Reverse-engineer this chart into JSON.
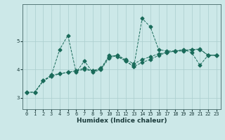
{
  "xlabel": "Humidex (Indice chaleur)",
  "ylabel": "",
  "background_color": "#cce8e8",
  "line_color": "#1a6b5a",
  "grid_color": "#aacece",
  "x_data": [
    0,
    1,
    2,
    3,
    4,
    5,
    6,
    7,
    8,
    9,
    10,
    11,
    12,
    13,
    14,
    15,
    16,
    17,
    18,
    19,
    20,
    21,
    22,
    23
  ],
  "series": [
    [
      3.2,
      3.2,
      3.6,
      3.8,
      4.7,
      5.2,
      3.9,
      4.3,
      3.9,
      4.0,
      4.5,
      4.45,
      4.3,
      4.1,
      5.8,
      5.5,
      4.7,
      4.65,
      4.65,
      4.7,
      4.6,
      4.15,
      4.5,
      4.5
    ],
    [
      3.2,
      3.2,
      3.6,
      3.8,
      3.85,
      3.9,
      3.95,
      4.0,
      3.95,
      4.05,
      4.45,
      4.5,
      4.35,
      4.2,
      4.35,
      4.45,
      4.55,
      4.6,
      4.65,
      4.68,
      4.7,
      4.72,
      4.5,
      4.5
    ],
    [
      3.2,
      3.2,
      3.6,
      3.75,
      3.85,
      3.9,
      3.95,
      4.05,
      3.95,
      4.0,
      4.4,
      4.5,
      4.3,
      4.1,
      4.25,
      4.35,
      4.5,
      4.6,
      4.65,
      4.65,
      4.7,
      4.7,
      4.5,
      4.5
    ]
  ],
  "yticks": [
    3,
    4,
    5
  ],
  "ylim": [
    2.6,
    6.3
  ],
  "xlim": [
    -0.5,
    23.5
  ],
  "xlabel_fontsize": 6.5,
  "tick_fontsize": 5,
  "marker_size": 2.5
}
